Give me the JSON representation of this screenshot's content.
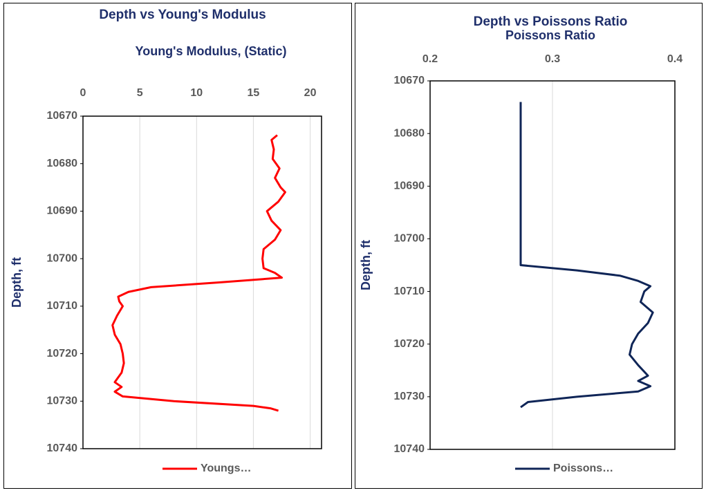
{
  "chart_data": [
    {
      "type": "line",
      "title": "Depth vs Young's Modulus",
      "x_label": "Young's Modulus, (Static)",
      "y_label": "Depth, ft",
      "xlim": [
        0,
        21
      ],
      "xticks": [
        0,
        5,
        10,
        15,
        20
      ],
      "ylim": [
        10670,
        10740
      ],
      "yticks": [
        10670,
        10680,
        10690,
        10700,
        10710,
        10720,
        10730,
        10740
      ],
      "y_inverted": true,
      "grid": true,
      "legend": "bottom",
      "depth": [
        10674,
        10675,
        10677,
        10679,
        10681,
        10683,
        10685,
        10686,
        10688,
        10690,
        10692,
        10694,
        10696,
        10698,
        10700,
        10702,
        10703,
        10704,
        10705,
        10706,
        10707,
        10708,
        10709,
        10710,
        10712,
        10714,
        10716,
        10718,
        10720,
        10722,
        10724,
        10726,
        10727,
        10728,
        10729,
        10730,
        10731,
        10731.5,
        10732
      ],
      "series": [
        {
          "name": "Youngs…",
          "color": "#ff0000",
          "values": [
            17.1,
            16.6,
            16.8,
            16.7,
            17.3,
            16.9,
            17.4,
            17.8,
            17.2,
            16.2,
            16.6,
            17.4,
            16.9,
            15.9,
            15.8,
            15.9,
            16.9,
            17.5,
            12,
            6,
            4,
            3.1,
            3.2,
            3.5,
            3.0,
            2.6,
            2.8,
            3.3,
            3.5,
            3.6,
            3.4,
            2.8,
            3.4,
            2.8,
            3.5,
            8,
            15,
            16.5,
            17.2
          ]
        }
      ]
    },
    {
      "type": "line",
      "title": "Depth vs Poissons Ratio",
      "x_label": "Poissons Ratio",
      "y_label": "Depth, ft",
      "xlim": [
        0.2,
        0.4
      ],
      "xticks": [
        0.2,
        0.3,
        0.4
      ],
      "ylim": [
        10670,
        10740
      ],
      "yticks": [
        10670,
        10680,
        10690,
        10700,
        10710,
        10720,
        10730,
        10740
      ],
      "y_inverted": true,
      "grid": true,
      "legend": "bottom",
      "depth": [
        10674,
        10680,
        10690,
        10700,
        10705,
        10706,
        10707,
        10708,
        10709,
        10710,
        10712,
        10714,
        10716,
        10718,
        10720,
        10722,
        10724,
        10726,
        10727,
        10728,
        10729,
        10730,
        10731,
        10732
      ],
      "series": [
        {
          "name": "Poissons…",
          "color": "#0f2557",
          "values": [
            0.274,
            0.274,
            0.274,
            0.274,
            0.274,
            0.32,
            0.355,
            0.37,
            0.38,
            0.375,
            0.372,
            0.382,
            0.378,
            0.37,
            0.365,
            0.363,
            0.37,
            0.378,
            0.37,
            0.38,
            0.37,
            0.32,
            0.28,
            0.274
          ]
        }
      ]
    }
  ]
}
